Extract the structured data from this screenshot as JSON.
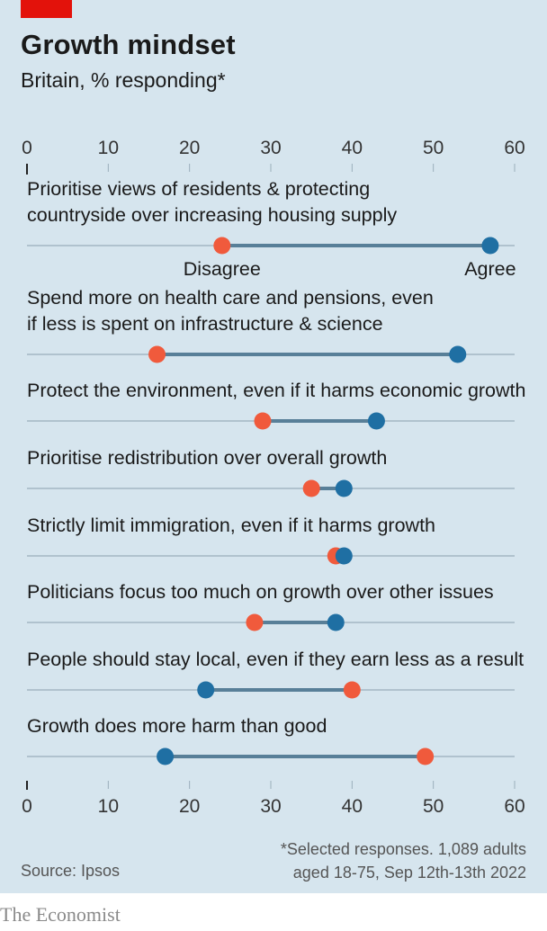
{
  "header": {
    "title": "Growth mindset",
    "subtitle": "Britain, % responding*"
  },
  "footer": {
    "source": "Source: Ipsos",
    "note_line1": "*Selected responses. 1,089 adults",
    "note_line2": "aged 18-75, Sep 12th-13th 2022",
    "brand": "The Economist"
  },
  "colors": {
    "disagree": "#f05a3c",
    "agree": "#1f6fa3",
    "connector": "#587f98",
    "baseline": "#9aaebb",
    "background": "#d6e5ee"
  },
  "chart_data": {
    "type": "dot",
    "xlim": [
      0,
      60
    ],
    "ticks": [
      0,
      10,
      20,
      30,
      40,
      50,
      60
    ],
    "legend_labels": {
      "disagree": "Disagree",
      "agree": "Agree"
    },
    "items": [
      {
        "label_lines": [
          "Prioritise views of residents & protecting",
          "countryside over increasing housing supply"
        ],
        "disagree": 24,
        "agree": 57
      },
      {
        "label_lines": [
          "Spend more on health care and pensions, even",
          "if less is spent on infrastructure & science"
        ],
        "disagree": 16,
        "agree": 53
      },
      {
        "label_lines": [
          "Protect the environment, even if it harms economic growth"
        ],
        "disagree": 29,
        "agree": 43
      },
      {
        "label_lines": [
          "Prioritise redistribution over overall growth"
        ],
        "disagree": 35,
        "agree": 39
      },
      {
        "label_lines": [
          "Strictly limit immigration, even if it harms growth"
        ],
        "disagree": 38,
        "agree": 39
      },
      {
        "label_lines": [
          "Politicians focus too much on growth over other issues"
        ],
        "disagree": 28,
        "agree": 38
      },
      {
        "label_lines": [
          "People should stay local, even if they earn less as a result"
        ],
        "disagree": 40,
        "agree": 22
      },
      {
        "label_lines": [
          "Growth does more harm than good"
        ],
        "disagree": 49,
        "agree": 17
      }
    ]
  }
}
